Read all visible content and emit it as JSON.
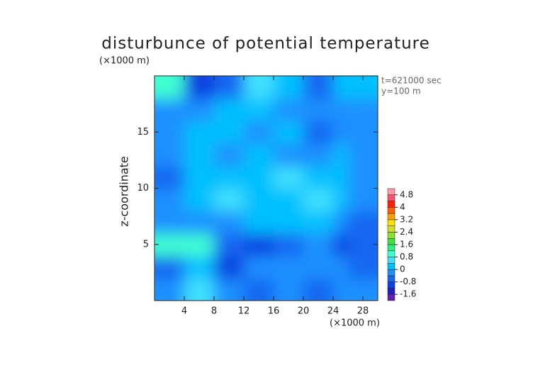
{
  "chart_data": {
    "type": "contour",
    "title": "disturbunce of potential temperature",
    "y_unit": "(×1000 m)",
    "x_unit": "(×1000 m)",
    "ylabel": "z-coordinate",
    "annotations": [
      "t=621000 sec",
      "y=100 m"
    ],
    "xlim": [
      0,
      30
    ],
    "ylim": [
      0,
      20
    ],
    "xticks": [
      4,
      8,
      12,
      16,
      20,
      24,
      28
    ],
    "yticks": [
      5,
      10,
      15
    ],
    "x": [
      2,
      6,
      10,
      14,
      18,
      22,
      26,
      28
    ],
    "y": [
      1,
      3,
      5,
      7,
      9,
      11,
      13,
      15,
      17,
      19
    ],
    "z": [
      [
        -0.4,
        0.6,
        -0.4,
        -0.6,
        -0.3,
        -0.6,
        -0.4,
        -0.3
      ],
      [
        -0.5,
        0.2,
        -0.9,
        -0.4,
        -0.3,
        -0.4,
        -0.4,
        -0.5
      ],
      [
        0.9,
        1.1,
        -0.5,
        -1.2,
        -0.5,
        -0.3,
        -0.9,
        -0.6
      ],
      [
        -0.4,
        -0.3,
        -0.4,
        0.2,
        0.3,
        0.3,
        -0.4,
        -0.7
      ],
      [
        -0.3,
        0.1,
        0.4,
        0.3,
        0.1,
        0.4,
        0.1,
        -0.3
      ],
      [
        -0.5,
        0.2,
        0.3,
        0.2,
        0.4,
        0.0,
        0.3,
        -0.4
      ],
      [
        -0.2,
        0.2,
        -0.3,
        0.2,
        -0.3,
        -0.2,
        0.2,
        -0.3
      ],
      [
        -0.4,
        0.1,
        0.3,
        -0.4,
        0.0,
        -0.5,
        -0.2,
        -0.3
      ],
      [
        -0.3,
        -0.2,
        0.3,
        0.1,
        -0.2,
        -0.3,
        -0.2,
        -0.4
      ],
      [
        0.9,
        -0.9,
        -0.6,
        0.6,
        0.2,
        -0.5,
        0.2,
        0.1
      ]
    ],
    "levels": [
      -2,
      -1.6,
      -1.2,
      -0.8,
      -0.4,
      0,
      0.4,
      0.8,
      1.2,
      1.6,
      2,
      2.4,
      2.8,
      3.2,
      3.6,
      4,
      4.4,
      4.8,
      5.2
    ],
    "colors": [
      "#6a1fb0",
      "#2020c8",
      "#1040e0",
      "#1866f0",
      "#1e90ff",
      "#00c0ff",
      "#40e0ff",
      "#40ffd0",
      "#30f080",
      "#40e040",
      "#90e030",
      "#d0e020",
      "#ffe000",
      "#ffa000",
      "#ff6000",
      "#ff2000",
      "#ff5070",
      "#ff9aa8"
    ],
    "colorbar_ticks": [
      4.8,
      4,
      3.2,
      2.4,
      1.6,
      0.8,
      0,
      -0.8,
      -1.6
    ]
  }
}
